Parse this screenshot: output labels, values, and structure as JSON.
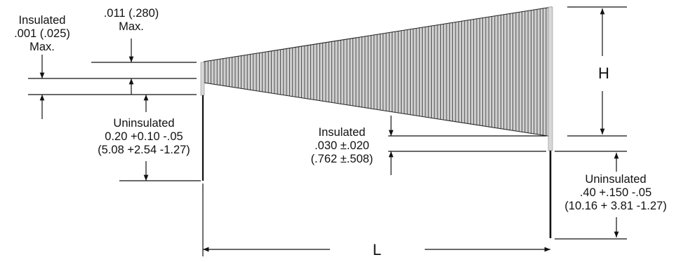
{
  "labels": {
    "top_left_insulated": [
      "Insulated",
      ".001 (.025)",
      "Max."
    ],
    "top_max": [
      ".011 (.280)",
      "Max."
    ],
    "left_uninsulated": [
      "Uninsulated",
      "0.20 +0.10 -.05",
      "(5.08 +2.54 -1.27)"
    ],
    "mid_insulated": [
      "Insulated",
      ".030 ±.020",
      "(.762 ±.508)"
    ],
    "right_uninsulated": [
      "Uninsulated",
      ".40 +.150 -.05",
      "(10.16 + 3.81 -1.27)"
    ],
    "height": "H",
    "length": "L"
  }
}
